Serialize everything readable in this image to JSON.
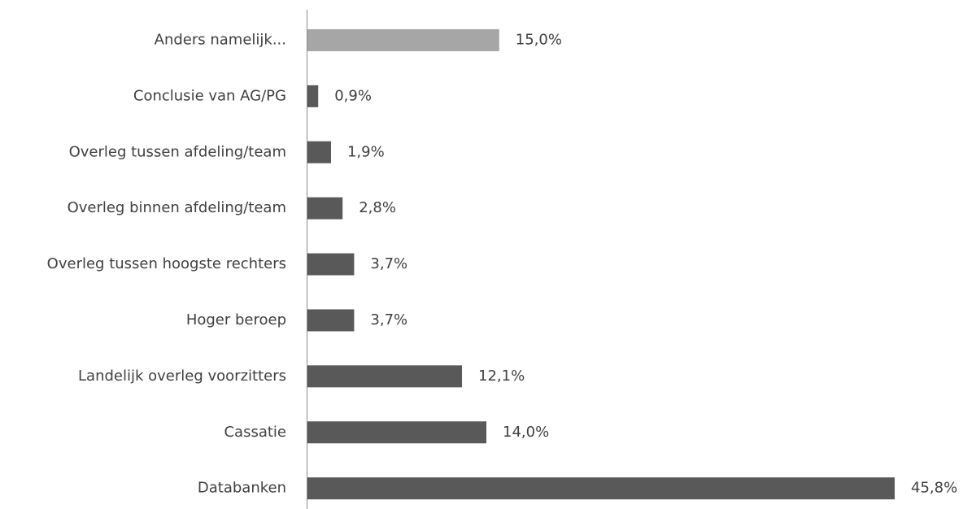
{
  "chart_data": {
    "type": "hbar",
    "categories": [
      "Anders namelijk...",
      "Conclusie van AG/PG",
      "Overleg tussen afdeling/team",
      "Overleg binnen afdeling/team",
      "Overleg tussen hoogste rechters",
      "Hoger beroep",
      "Landelijk overleg voorzitters",
      "Cassatie",
      "Databanken"
    ],
    "values": [
      15.0,
      0.9,
      1.9,
      2.8,
      3.7,
      3.7,
      12.1,
      14.0,
      45.8
    ],
    "value_labels": [
      "15,0%",
      "0,9%",
      "1,9%",
      "2,8%",
      "3,7%",
      "3,7%",
      "12,1%",
      "14,0%",
      "45,8%"
    ],
    "colors": [
      "#a6a6a6",
      "#595959",
      "#595959",
      "#595959",
      "#595959",
      "#595959",
      "#595959",
      "#595959",
      "#595959"
    ]
  }
}
